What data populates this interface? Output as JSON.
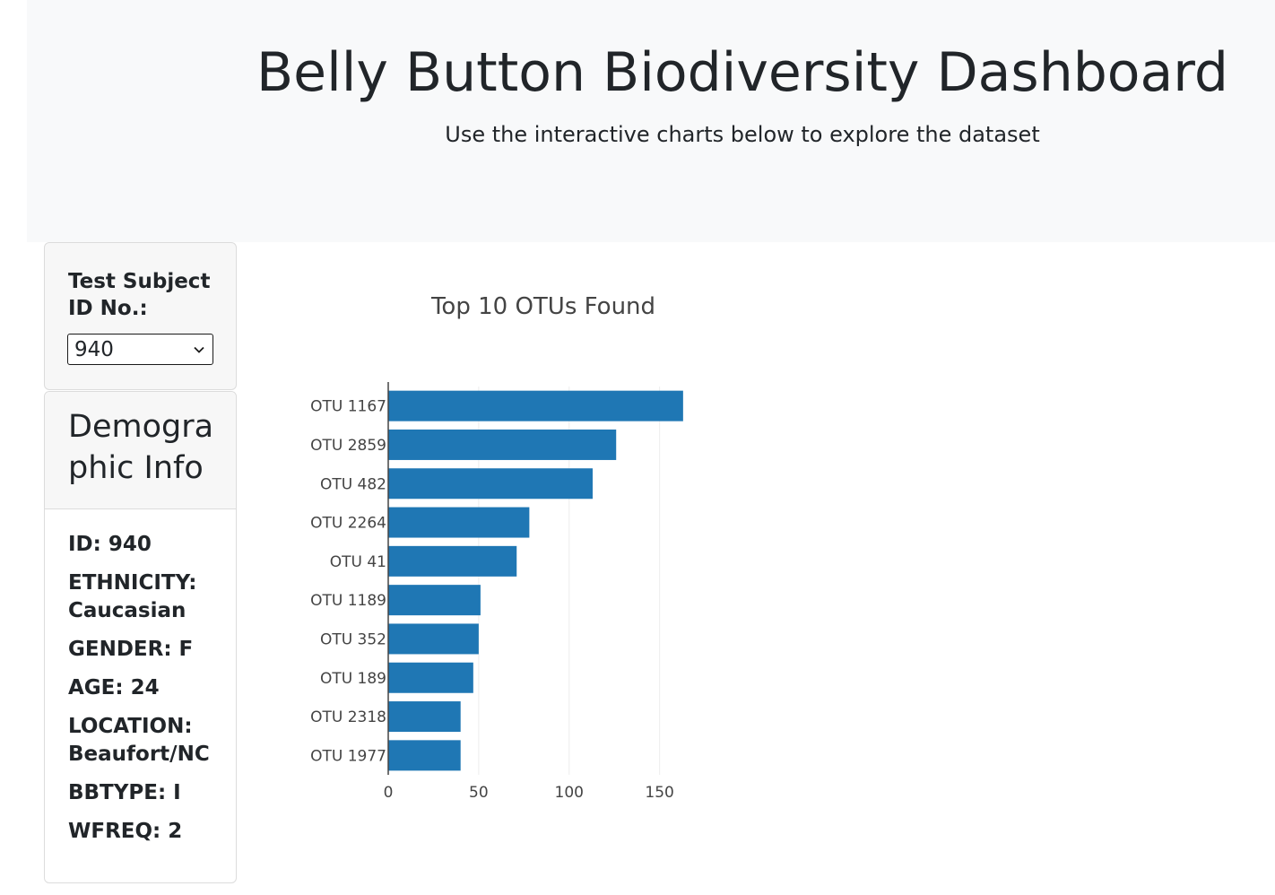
{
  "header": {
    "title": "Belly Button Biodiversity Dashboard",
    "subtitle": "Use the interactive charts below to explore the dataset"
  },
  "selector": {
    "label": "Test Subject ID No.:",
    "selected_value": "940"
  },
  "demographics": {
    "title": "Demographic Info",
    "items": [
      "ID: 940",
      "ETHNICITY: Caucasian",
      "GENDER: F",
      "AGE: 24",
      "LOCATION: Beaufort/NC",
      "BBTYPE: I",
      "WFREQ: 2"
    ]
  },
  "colors": {
    "bar": "#1f77b4",
    "gridline": "#eeeeee",
    "axis": "#444444"
  },
  "chart_data": {
    "type": "bar",
    "orientation": "horizontal",
    "title": "Top 10 OTUs Found",
    "categories": [
      "OTU 1167",
      "OTU 2859",
      "OTU 482",
      "OTU 2264",
      "OTU 41",
      "OTU 1189",
      "OTU 352",
      "OTU 189",
      "OTU 2318",
      "OTU 1977"
    ],
    "values": [
      163,
      126,
      113,
      78,
      71,
      51,
      50,
      47,
      40,
      40
    ],
    "xticks": [
      0,
      50,
      100,
      150
    ],
    "xlim": [
      0,
      171
    ],
    "grid": true,
    "legend": "none"
  }
}
